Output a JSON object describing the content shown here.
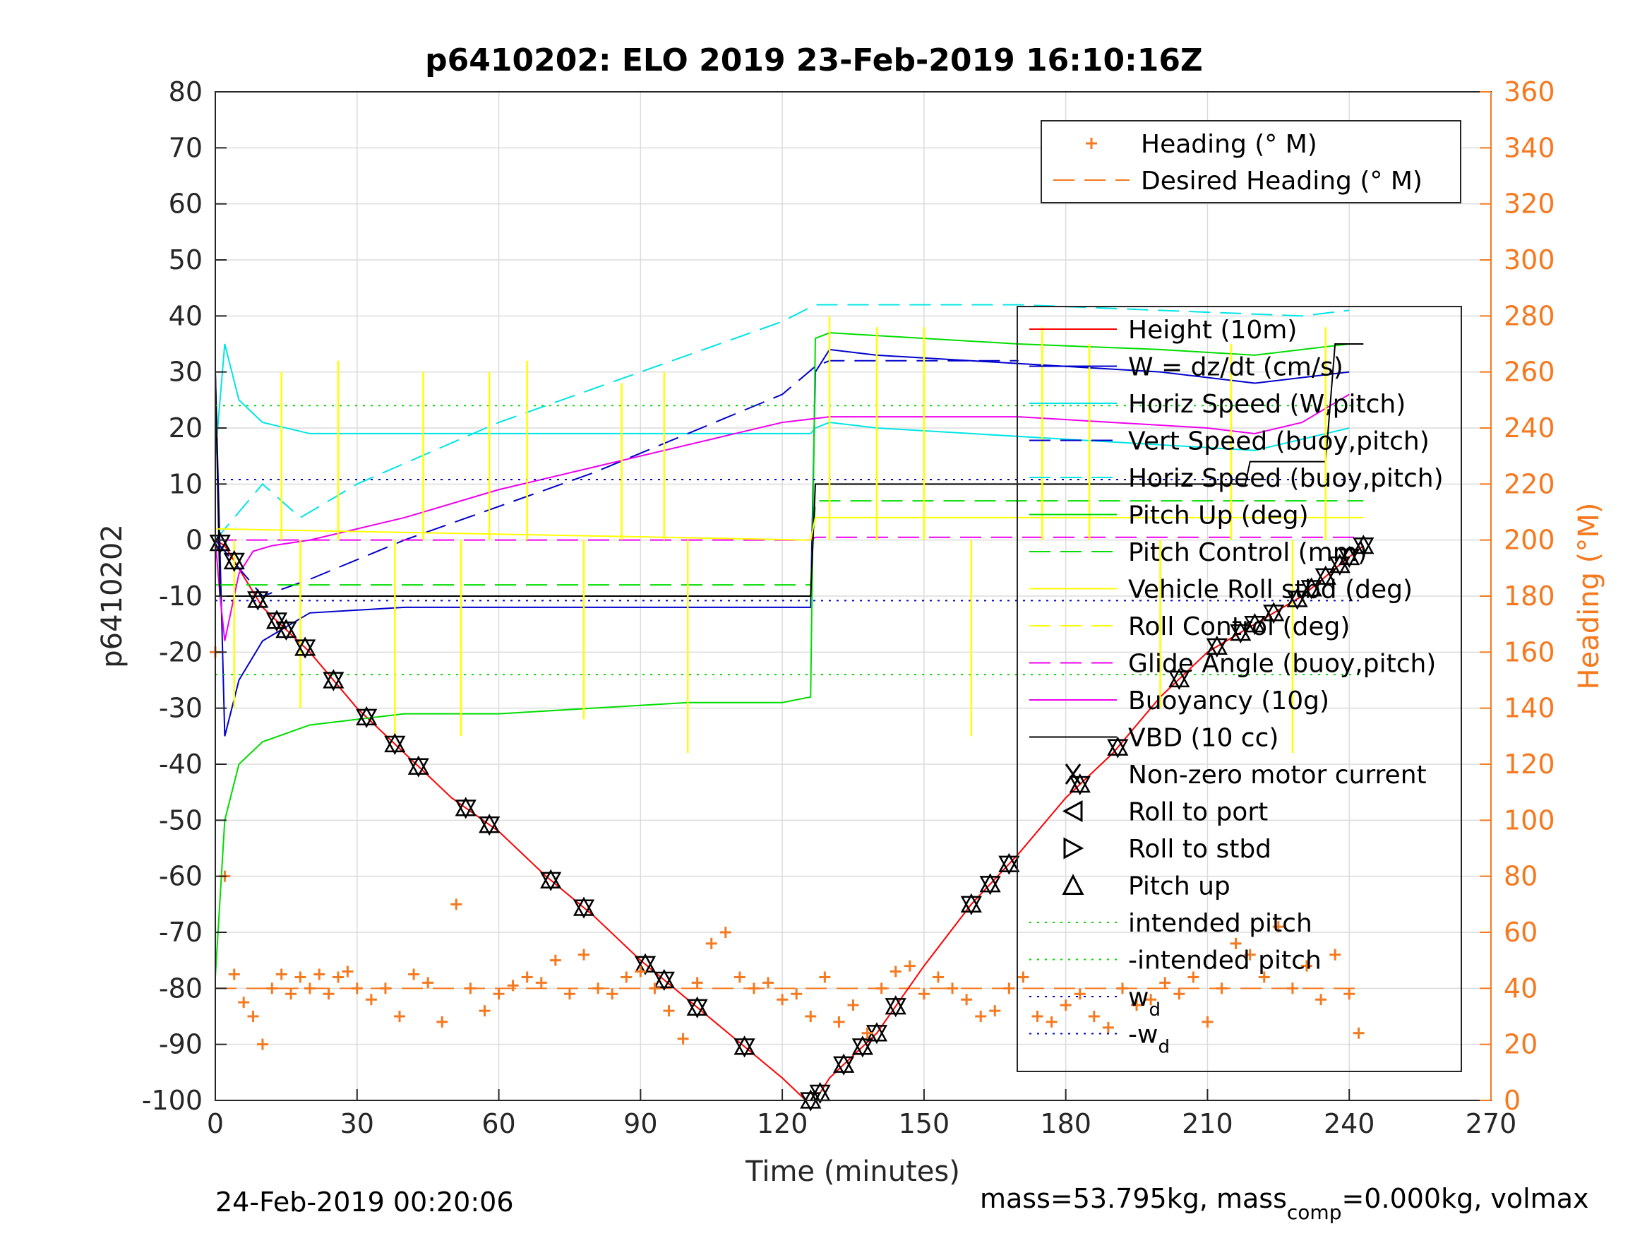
{
  "chart_data": {
    "type": "line",
    "title": "p6410202: ELO 2019 23-Feb-2019 16:10:16Z",
    "xlabel": "Time (minutes)",
    "ylabel_left": "p6410202",
    "ylabel_right": "Heading (°M)",
    "xlim": [
      0,
      270
    ],
    "ylim_left": [
      -100,
      80
    ],
    "ylim_right": [
      0,
      360
    ],
    "x_ticks": [
      "0",
      "30",
      "60",
      "90",
      "120",
      "150",
      "180",
      "210",
      "240",
      "270"
    ],
    "y_ticks_left": [
      "80",
      "70",
      "60",
      "50",
      "40",
      "30",
      "20",
      "10",
      "0",
      "-10",
      "-20",
      "-30",
      "-40",
      "-50",
      "-60",
      "-70",
      "-80",
      "-90",
      "-100"
    ],
    "y_ticks_right": [
      "360",
      "340",
      "320",
      "300",
      "280",
      "260",
      "240",
      "220",
      "200",
      "180",
      "160",
      "140",
      "120",
      "100",
      "80",
      "60",
      "40",
      "20",
      "0"
    ],
    "grid": true,
    "footer_left": "24-Feb-2019 00:20:06",
    "footer_right_prefix": "mass=53.795kg, mass",
    "footer_right_sub": "comp",
    "footer_right_suffix": "=0.000kg, volmax",
    "heading_legend": [
      {
        "name": "Heading (° M)",
        "color": "#F5791F",
        "style": "plus"
      },
      {
        "name": "Desired Heading (° M)",
        "color": "#F5791F",
        "style": "dash"
      }
    ],
    "main_legend": [
      {
        "name": "Height (10m)",
        "color": "#FF0000",
        "style": "solid"
      },
      {
        "name": "W = dz/dt (cm/s)",
        "color": "#0000CC",
        "style": "solid"
      },
      {
        "name": "Horiz Speed (W,pitch)",
        "color": "#00E5E5",
        "style": "solid"
      },
      {
        "name": "Vert Speed (buoy,pitch)",
        "color": "#0000CC",
        "style": "dash"
      },
      {
        "name": "Horiz Speed (buoy,pitch)",
        "color": "#00E5E5",
        "style": "dash"
      },
      {
        "name": "Pitch Up (deg)",
        "color": "#00DD00",
        "style": "solid"
      },
      {
        "name": "Pitch Control (mm)",
        "color": "#00DD00",
        "style": "dash"
      },
      {
        "name": "Vehicle Roll stbd (deg)",
        "color": "#FFFF00",
        "style": "solid"
      },
      {
        "name": "Roll Control (deg)",
        "color": "#FFFF00",
        "style": "dash"
      },
      {
        "name": "Glide Angle (buoy,pitch)",
        "color": "#EE00EE",
        "style": "dash"
      },
      {
        "name": "Buoyancy (10g)",
        "color": "#EE00EE",
        "style": "solid"
      },
      {
        "name": "VBD (10 cc)",
        "color": "#000000",
        "style": "solid"
      },
      {
        "name": "Non-zero motor current",
        "color": "#000000",
        "style": "star"
      },
      {
        "name": "Roll to port",
        "color": "#000000",
        "style": "tri-left"
      },
      {
        "name": "Roll to stbd",
        "color": "#000000",
        "style": "tri-right"
      },
      {
        "name": "Pitch up",
        "color": "#000000",
        "style": "tri-up"
      },
      {
        "name": "intended pitch",
        "color": "#00DD00",
        "style": "dot"
      },
      {
        "name": "-intended pitch",
        "color": "#00DD00",
        "style": "dot"
      },
      {
        "name": "w",
        "sub": "d",
        "color": "#0000CC",
        "style": "dot"
      },
      {
        "name": "-w",
        "sub": "d",
        "color": "#0000CC",
        "style": "dot"
      }
    ],
    "series": [
      {
        "name": "Height (10m)",
        "color": "#FF0000",
        "axis": "left",
        "x": [
          0,
          2,
          10,
          20,
          30,
          40,
          50,
          60,
          70,
          80,
          90,
          100,
          110,
          120,
          125,
          127,
          130,
          140,
          150,
          160,
          170,
          180,
          190,
          200,
          210,
          220,
          230,
          240,
          243
        ],
        "y": [
          0,
          -1,
          -12,
          -20,
          -30,
          -38,
          -46,
          -52,
          -60,
          -67,
          -75,
          -82,
          -89,
          -96,
          -100,
          -100,
          -96,
          -88,
          -76,
          -65,
          -56,
          -46,
          -38,
          -28,
          -20,
          -15,
          -10,
          -3,
          -1
        ]
      },
      {
        "name": "W = dz/dt (cm/s)",
        "color": "#0000CC",
        "axis": "left",
        "x": [
          0,
          2,
          5,
          10,
          20,
          40,
          60,
          80,
          100,
          120,
          126,
          127,
          130,
          140,
          160,
          180,
          200,
          220,
          240
        ],
        "y": [
          30,
          -35,
          -25,
          -18,
          -13,
          -12,
          -12,
          -12,
          -12,
          -12,
          -12,
          30,
          34,
          33,
          32,
          31,
          30,
          28,
          30
        ]
      },
      {
        "name": "Horiz Speed (W,pitch)",
        "color": "#00E5E5",
        "axis": "left",
        "x": [
          0,
          2,
          5,
          10,
          20,
          40,
          60,
          80,
          100,
          120,
          126,
          127,
          130,
          140,
          160,
          180,
          200,
          220,
          240
        ],
        "y": [
          15,
          35,
          25,
          21,
          19,
          19,
          19,
          19,
          19,
          19,
          19,
          20,
          21,
          20,
          19,
          18,
          17,
          16,
          20
        ]
      },
      {
        "name": "Vert Speed (buoy,pitch)",
        "color": "#0000CC",
        "axis": "left",
        "x": [
          0,
          10,
          20,
          40,
          60,
          80,
          100,
          120,
          127,
          130,
          150,
          170
        ],
        "y": [
          0,
          -10,
          -7,
          0,
          6,
          12,
          19,
          26,
          31,
          32,
          32,
          32
        ]
      },
      {
        "name": "Horiz Speed (buoy,pitch)",
        "color": "#00E5E5",
        "axis": "left",
        "x": [
          0,
          10,
          18,
          30,
          60,
          90,
          120,
          127,
          130,
          150,
          170,
          200,
          230,
          240
        ],
        "y": [
          0,
          10,
          4,
          10,
          21,
          30,
          39,
          42,
          42,
          42,
          42,
          41,
          40,
          41
        ]
      },
      {
        "name": "Pitch Up (deg)",
        "color": "#00DD00",
        "axis": "left",
        "x": [
          0,
          2,
          5,
          10,
          20,
          40,
          60,
          80,
          100,
          120,
          126,
          127,
          130,
          150,
          170,
          200,
          220,
          240
        ],
        "y": [
          -78,
          -50,
          -40,
          -36,
          -33,
          -31,
          -31,
          -30,
          -29,
          -29,
          -28,
          36,
          37,
          36,
          35,
          34,
          33,
          35
        ]
      },
      {
        "name": "Pitch Control (mm)",
        "color": "#00DD00",
        "axis": "left",
        "x": [
          0,
          3,
          126,
          127,
          243
        ],
        "y": [
          -8,
          -8,
          -8,
          7,
          7
        ]
      },
      {
        "name": "Buoyancy (10g)",
        "color": "#EE00EE",
        "axis": "left",
        "x": [
          0,
          1,
          2,
          3,
          5,
          8,
          12,
          20,
          40,
          60,
          80,
          100,
          120,
          130,
          150,
          170,
          190,
          210,
          220,
          230,
          240
        ],
        "y": [
          0,
          -10,
          -18,
          -14,
          -6,
          -2,
          -1,
          0,
          4,
          9,
          13,
          17,
          21,
          22,
          22,
          22,
          21,
          20,
          19,
          21,
          26
        ]
      },
      {
        "name": "Glide Angle (buoy,pitch)",
        "color": "#EE00EE",
        "axis": "left",
        "x": [
          0,
          126,
          127,
          243
        ],
        "y": [
          0,
          0,
          0.5,
          0.5
        ]
      },
      {
        "name": "VBD (10 cc)",
        "color": "#000000",
        "axis": "left",
        "x": [
          0,
          0.5,
          1,
          126,
          127,
          218,
          219,
          235,
          237,
          243
        ],
        "y": [
          30,
          10,
          -10,
          -10,
          10,
          10,
          14,
          14,
          35,
          35
        ]
      },
      {
        "name": "intended pitch",
        "color": "#00DD00",
        "axis": "left",
        "x": [
          0,
          243
        ],
        "y": [
          24,
          24
        ]
      },
      {
        "name": "-intended pitch",
        "color": "#00DD00",
        "axis": "left",
        "x": [
          0,
          243
        ],
        "y": [
          -24,
          -24
        ]
      },
      {
        "name": "w_d",
        "color": "#0000CC",
        "axis": "left",
        "x": [
          0,
          243
        ],
        "y": [
          10.8,
          10.8
        ]
      },
      {
        "name": "-w_d",
        "color": "#0000CC",
        "axis": "left",
        "x": [
          0,
          243
        ],
        "y": [
          -10.8,
          -10.8
        ]
      }
    ],
    "roll_spikes_deg": {
      "x": [
        4,
        14,
        18,
        26,
        38,
        44,
        52,
        58,
        66,
        78,
        86,
        95,
        100,
        130,
        140,
        150,
        160,
        175,
        185,
        200,
        215,
        228,
        235
      ],
      "y": [
        -30,
        30,
        -30,
        32,
        -35,
        30,
        -35,
        30,
        32,
        -32,
        28,
        30,
        -38,
        40,
        38,
        38,
        -35,
        38,
        35,
        -30,
        35,
        -38,
        38
      ]
    },
    "heading": {
      "axis": "right",
      "desired": 40,
      "x": [
        0,
        2,
        4,
        6,
        8,
        10,
        12,
        14,
        16,
        18,
        20,
        22,
        24,
        26,
        28,
        30,
        33,
        36,
        39,
        42,
        45,
        48,
        51,
        54,
        57,
        60,
        63,
        66,
        69,
        72,
        75,
        78,
        81,
        84,
        87,
        90,
        93,
        96,
        99,
        102,
        105,
        108,
        111,
        114,
        117,
        120,
        123,
        126,
        129,
        132,
        135,
        138,
        141,
        144,
        147,
        150,
        153,
        156,
        159,
        162,
        165,
        168,
        171,
        174,
        177,
        180,
        183,
        186,
        189,
        192,
        195,
        198,
        201,
        204,
        207,
        210,
        213,
        216,
        219,
        222,
        225,
        228,
        231,
        234,
        237,
        240,
        242
      ],
      "y": [
        160,
        80,
        45,
        35,
        30,
        20,
        40,
        45,
        38,
        44,
        40,
        45,
        38,
        44,
        46,
        40,
        36,
        40,
        30,
        45,
        42,
        28,
        70,
        40,
        32,
        38,
        41,
        44,
        42,
        50,
        38,
        52,
        40,
        38,
        44,
        46,
        40,
        32,
        22,
        42,
        56,
        60,
        44,
        40,
        42,
        36,
        38,
        30,
        44,
        28,
        34,
        24,
        40,
        46,
        48,
        38,
        44,
        40,
        36,
        30,
        32,
        40,
        44,
        30,
        28,
        34,
        38,
        30,
        26,
        40,
        34,
        36,
        42,
        38,
        44,
        28,
        40,
        56,
        52,
        44,
        62,
        40,
        48,
        36,
        52,
        38,
        24
      ]
    }
  }
}
